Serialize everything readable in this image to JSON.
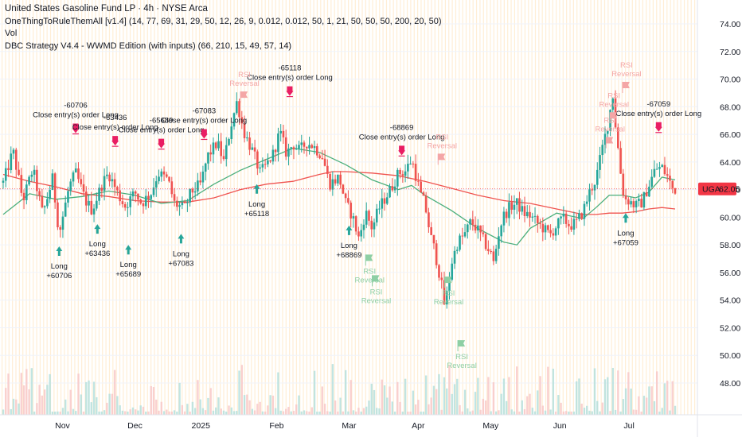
{
  "legend": {
    "title": "United States Gasoline Fund LP · 4h · NYSE Arca",
    "indicator1": "OneThingToRuleThemAll [v1.4] (14, 77, 69, 31, 29, 50, 12, 26, 9, 0.012, 0.012, 50, 1, 21, 50, 50, 50, 200, 20, 50)",
    "indicator2": "Vol",
    "indicator3": "DBC Strategy V4.4 - WWMD Edition (with inputs) (66, 210, 15, 49, 57, 14)"
  },
  "price_tag": {
    "symbol": "UGA",
    "value": "62.05",
    "price": 62.05
  },
  "colors": {
    "up": "#26a69a",
    "down": "#ef5350",
    "ma_fast": "#4caf7d",
    "ma_slow": "#ef5350",
    "long_arrow": "#26a69a",
    "close_arrow": "#e91e63",
    "tag_bg": "#f23645",
    "rsi_top": "#f4a6a6",
    "rsi_bottom": "#8ecfa4",
    "vol_up": "#b2dfdb",
    "vol_down": "#f8c6c6"
  },
  "chart_data": {
    "type": "candlestick",
    "ylim": [
      46.5,
      75
    ],
    "xlim": [
      0,
      100
    ],
    "yticks": [
      48,
      50,
      52,
      54,
      56,
      58,
      60,
      62,
      64,
      66,
      68,
      70,
      72,
      74
    ],
    "ytick_labels": [
      "48.00",
      "50.00",
      "52.00",
      "54.00",
      "56.00",
      "58.00",
      "60.00",
      "62.00",
      "64.00",
      "66.00",
      "68.00",
      "70.00",
      "72.00",
      "74.00"
    ],
    "xticks": [
      {
        "label": "Nov",
        "x": 9
      },
      {
        "label": "Dec",
        "x": 20
      },
      {
        "label": "2025",
        "x": 30
      },
      {
        "label": "Feb",
        "x": 41.5
      },
      {
        "label": "Mar",
        "x": 52.5
      },
      {
        "label": "Apr",
        "x": 63
      },
      {
        "label": "May",
        "x": 74
      },
      {
        "label": "Jun",
        "x": 84.5
      },
      {
        "label": "Jul",
        "x": 95
      }
    ],
    "price_anchors": [
      [
        0,
        62.5
      ],
      [
        1.5,
        64.8
      ],
      [
        3,
        61.2
      ],
      [
        4.5,
        63.5
      ],
      [
        6,
        60.2
      ],
      [
        7.5,
        62.8
      ],
      [
        8.5,
        58.8
      ],
      [
        10,
        62.2
      ],
      [
        11,
        63.2
      ],
      [
        12.5,
        61.2
      ],
      [
        13.5,
        60.5
      ],
      [
        15,
        62.4
      ],
      [
        16,
        63.2
      ],
      [
        17.5,
        61.6
      ],
      [
        18.5,
        60.8
      ],
      [
        20,
        61.8
      ],
      [
        21,
        61
      ],
      [
        22.5,
        61.8
      ],
      [
        23.5,
        63.2
      ],
      [
        25,
        62.7
      ],
      [
        26,
        61
      ],
      [
        27.5,
        60.6
      ],
      [
        28.5,
        61.8
      ],
      [
        30,
        62.4
      ],
      [
        31,
        64.4
      ],
      [
        32.5,
        65.4
      ],
      [
        33.5,
        64
      ],
      [
        34.5,
        66.5
      ],
      [
        35.5,
        68.4
      ],
      [
        36.5,
        66.2
      ],
      [
        38,
        64.6
      ],
      [
        39,
        63.2
      ],
      [
        40,
        63.8
      ],
      [
        41,
        64.6
      ],
      [
        42,
        66.2
      ],
      [
        43,
        64.6
      ],
      [
        44,
        65.3
      ],
      [
        45,
        64.8
      ],
      [
        46,
        65.4
      ],
      [
        47,
        65.2
      ],
      [
        48.5,
        64.4
      ],
      [
        49.5,
        62.4
      ],
      [
        51,
        62.9
      ],
      [
        52,
        61
      ],
      [
        53,
        60.1
      ],
      [
        54,
        58.4
      ],
      [
        55,
        60.4
      ],
      [
        56,
        59.2
      ],
      [
        57,
        60.6
      ],
      [
        58,
        61.4
      ],
      [
        59,
        62.2
      ],
      [
        60,
        63.2
      ],
      [
        61,
        63.3
      ],
      [
        62,
        64.2
      ],
      [
        63.5,
        61.4
      ],
      [
        64,
        61
      ],
      [
        64.5,
        59.6
      ],
      [
        65,
        58.4
      ],
      [
        65.5,
        57.6
      ],
      [
        66,
        56.4
      ],
      [
        66.5,
        55.2
      ],
      [
        67,
        53.6
      ],
      [
        67.5,
        54.8
      ],
      [
        68,
        56.6
      ],
      [
        68.5,
        57.4
      ],
      [
        69,
        58.2
      ],
      [
        70,
        58.7
      ],
      [
        71,
        59.7
      ],
      [
        72,
        59.1
      ],
      [
        73,
        58.2
      ],
      [
        74,
        57.4
      ],
      [
        74.5,
        56.6
      ],
      [
        75,
        58.4
      ],
      [
        75.5,
        59.4
      ],
      [
        76,
        60.1
      ],
      [
        77,
        60.8
      ],
      [
        78,
        61
      ],
      [
        79,
        60.3
      ],
      [
        80,
        60.1
      ],
      [
        81,
        59.6
      ],
      [
        82,
        59.2
      ],
      [
        83,
        58.7
      ],
      [
        84,
        59.4
      ],
      [
        85,
        59.9
      ],
      [
        86,
        59.4
      ],
      [
        87,
        59.6
      ],
      [
        88,
        60.4
      ],
      [
        89,
        61.8
      ],
      [
        90,
        62.8
      ],
      [
        91,
        65.1
      ],
      [
        92,
        67.2
      ],
      [
        92.5,
        69.1
      ],
      [
        93,
        66.4
      ],
      [
        93.5,
        64.3
      ],
      [
        94,
        62
      ],
      [
        94.5,
        61.3
      ],
      [
        95,
        61.2
      ],
      [
        96,
        60.8
      ],
      [
        97,
        61.1
      ],
      [
        98,
        62.3
      ],
      [
        99,
        63.5
      ],
      [
        100,
        63.6
      ],
      [
        101,
        62.8
      ],
      [
        101.5,
        62.1
      ],
      [
        102,
        62.05
      ]
    ],
    "ma_fast": [
      [
        0,
        60.2
      ],
      [
        4,
        61.7
      ],
      [
        8,
        61.3
      ],
      [
        12,
        61.5
      ],
      [
        16,
        61.9
      ],
      [
        20,
        61.6
      ],
      [
        24,
        61
      ],
      [
        28,
        61.2
      ],
      [
        32,
        62.4
      ],
      [
        36,
        63.4
      ],
      [
        40,
        64.2
      ],
      [
        44,
        65
      ],
      [
        48,
        64.7
      ],
      [
        52,
        63.8
      ],
      [
        56,
        62.7
      ],
      [
        60,
        62
      ],
      [
        62,
        62.3
      ],
      [
        64,
        61.6
      ],
      [
        68,
        60.5
      ],
      [
        72,
        59.2
      ],
      [
        76,
        58.2
      ],
      [
        78,
        58
      ],
      [
        80,
        59.2
      ],
      [
        84,
        60.3
      ],
      [
        86,
        60.1
      ],
      [
        88,
        59.9
      ],
      [
        90,
        60.7
      ],
      [
        92,
        61.6
      ],
      [
        94,
        61.6
      ],
      [
        96,
        61.4
      ],
      [
        98,
        61.8
      ],
      [
        100,
        62.9
      ],
      [
        102,
        62.7
      ]
    ],
    "ma_slow": [
      [
        0,
        63.1
      ],
      [
        4,
        62.6
      ],
      [
        8,
        62.2
      ],
      [
        12,
        61.7
      ],
      [
        16,
        61.5
      ],
      [
        20,
        61.2
      ],
      [
        24,
        61.1
      ],
      [
        28,
        61.1
      ],
      [
        32,
        61.4
      ],
      [
        36,
        62
      ],
      [
        40,
        62.4
      ],
      [
        44,
        62.6
      ],
      [
        48,
        63.1
      ],
      [
        50,
        63.3
      ],
      [
        52,
        63.3
      ],
      [
        56,
        63.2
      ],
      [
        60,
        63
      ],
      [
        64,
        62.6
      ],
      [
        68,
        62.1
      ],
      [
        72,
        61.6
      ],
      [
        76,
        61.2
      ],
      [
        80,
        61
      ],
      [
        84,
        60.6
      ],
      [
        86,
        60.4
      ],
      [
        88,
        60.2
      ],
      [
        90,
        60.2
      ],
      [
        92,
        60.3
      ],
      [
        94,
        60.3
      ],
      [
        96,
        60.4
      ],
      [
        98,
        60.6
      ],
      [
        100,
        60.7
      ],
      [
        102,
        60.6
      ]
    ],
    "long_signals": [
      {
        "x": 8.5,
        "y": 58.7,
        "label": "Long",
        "value": "+60706"
      },
      {
        "x": 14.3,
        "y": 60.3,
        "label": "Long",
        "value": "+63436"
      },
      {
        "x": 19,
        "y": 58.8,
        "label": "Long",
        "value": "+65689"
      },
      {
        "x": 27,
        "y": 59.6,
        "label": "Long",
        "value": "+67083"
      },
      {
        "x": 38.5,
        "y": 63.2,
        "label": "Long",
        "value": "+65118"
      },
      {
        "x": 52.5,
        "y": 60.2,
        "label": "Long",
        "value": "+68869"
      },
      {
        "x": 94.5,
        "y": 61.1,
        "label": "Long",
        "value": "+67059"
      }
    ],
    "close_signals": [
      {
        "x": 11,
        "y": 65.4,
        "label": "Close entry(s) order Long",
        "value": "-60706"
      },
      {
        "x": 17,
        "y": 64.5,
        "label": "Close entry(s) order Long",
        "value": "-63436"
      },
      {
        "x": 24,
        "y": 64.3,
        "label": "Close entry(s) order Long",
        "value": "-65689"
      },
      {
        "x": 30.5,
        "y": 65.0,
        "label": "Close entry(s) order Long",
        "value": "-67083"
      },
      {
        "x": 43.5,
        "y": 68.1,
        "label": "Close entry(s) order Long",
        "value": "-65118"
      },
      {
        "x": 60.5,
        "y": 63.8,
        "label": "Close entry(s) order Long",
        "value": "-68869"
      },
      {
        "x": 99.5,
        "y": 65.5,
        "label": "Close entry(s) order Long",
        "value": "-67059"
      }
    ],
    "rsi_reversals_top": [
      {
        "x": 36.5,
        "y": 69.1,
        "label": "RSI Reversal"
      },
      {
        "x": 66.5,
        "y": 64.6,
        "label": "RSI Reversal"
      },
      {
        "x": 94.5,
        "y": 69.8,
        "label": "RSI Reversal"
      },
      {
        "x": 92.6,
        "y": 67.6,
        "label": "RSI Reversal"
      },
      {
        "x": 92.0,
        "y": 65.8,
        "label": "RSI Reversal"
      }
    ],
    "rsi_reversals_bottom": [
      {
        "x": 55.5,
        "y": 57.3,
        "label": "RSI Reversal"
      },
      {
        "x": 56.5,
        "y": 55.8,
        "label": "RSI Reversal"
      },
      {
        "x": 67.5,
        "y": 55.7,
        "label": "RSI Reversal"
      },
      {
        "x": 69.5,
        "y": 51.1,
        "label": "RSI Reversal"
      }
    ]
  }
}
